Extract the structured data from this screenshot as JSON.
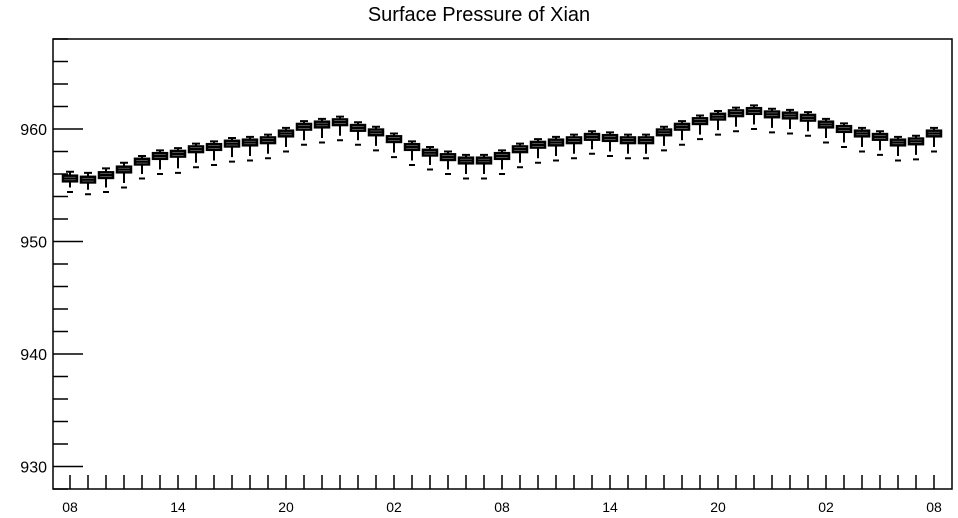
{
  "chart_data": {
    "type": "box",
    "title": "Surface Pressure of Xian",
    "xlabel": "",
    "ylabel": "",
    "ylim": [
      928,
      968
    ],
    "yticks": [
      930,
      940,
      950,
      960
    ],
    "xtick_labels": [
      "08",
      "14",
      "20",
      "02",
      "08",
      "14",
      "20",
      "02",
      "08"
    ],
    "grid": false,
    "series": [
      {
        "median": [
          955.6,
          955.5,
          955.9,
          956.4,
          957.1,
          957.6,
          957.8,
          958.2,
          958.4,
          958.7,
          958.8,
          959.0,
          959.6,
          960.2,
          960.4,
          960.6,
          960.1,
          959.7,
          959.1,
          958.4,
          957.9,
          957.5,
          957.2,
          957.2,
          957.6,
          958.2,
          958.6,
          958.8,
          959.0,
          959.3,
          959.2,
          959.0,
          959.0,
          959.7,
          960.2,
          960.7,
          961.1,
          961.4,
          961.6,
          961.3,
          961.2,
          961.0,
          960.4,
          960.0,
          959.6,
          959.3,
          958.8,
          958.9,
          959.6
        ],
        "low": [
          954.4,
          954.2,
          954.4,
          954.8,
          955.6,
          956.0,
          956.1,
          956.6,
          956.8,
          957.1,
          957.2,
          957.4,
          958.0,
          958.6,
          958.8,
          959.0,
          958.6,
          958.1,
          957.5,
          956.8,
          956.4,
          956.0,
          955.6,
          955.6,
          956.0,
          956.6,
          957.0,
          957.2,
          957.4,
          957.8,
          957.6,
          957.4,
          957.4,
          958.1,
          958.6,
          959.1,
          959.5,
          959.8,
          960.0,
          959.7,
          959.6,
          959.4,
          958.8,
          958.4,
          958.0,
          957.7,
          957.2,
          957.3,
          958.0
        ],
        "high": [
          956.2,
          956.1,
          956.5,
          957.0,
          957.6,
          958.1,
          958.3,
          958.7,
          958.9,
          959.2,
          959.3,
          959.5,
          960.1,
          960.7,
          960.9,
          961.1,
          960.6,
          960.2,
          959.6,
          958.9,
          958.4,
          958.0,
          957.7,
          957.7,
          958.1,
          958.7,
          959.1,
          959.3,
          959.5,
          959.8,
          959.7,
          959.5,
          959.5,
          960.2,
          960.7,
          961.2,
          961.6,
          961.9,
          962.1,
          961.8,
          961.7,
          961.5,
          960.9,
          960.5,
          960.1,
          959.8,
          959.3,
          959.4,
          960.1
        ]
      }
    ]
  }
}
